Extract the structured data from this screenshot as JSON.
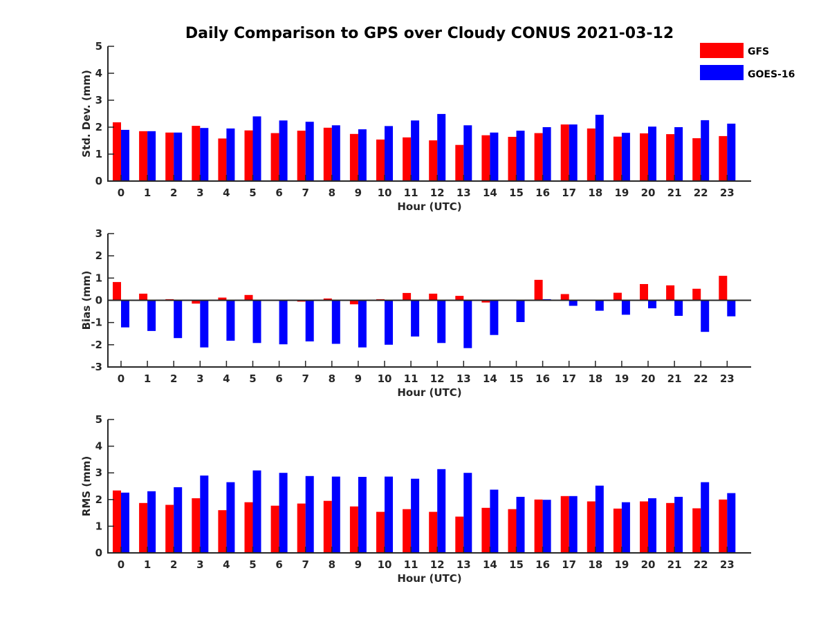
{
  "figure": {
    "title": "Daily Comparison to GPS over Cloudy CONUS 2021-03-12"
  },
  "legend": [
    {
      "label": "GFS",
      "color": "#ff0000"
    },
    {
      "label": "GOES-16",
      "color": "#0000ff"
    }
  ],
  "chart_data": [
    {
      "type": "bar",
      "title": "Daily Comparison to GPS over Cloudy CONUS 2021-03-12",
      "xlabel": "Hour (UTC)",
      "ylabel": "Std. Dev. (mm)",
      "ylim": [
        0,
        5
      ],
      "yticks": [
        0,
        1,
        2,
        3,
        4,
        5
      ],
      "grid": false,
      "legend_position": "top-right",
      "categories": [
        "0",
        "1",
        "2",
        "3",
        "4",
        "5",
        "6",
        "7",
        "8",
        "9",
        "10",
        "11",
        "12",
        "13",
        "14",
        "15",
        "16",
        "17",
        "18",
        "19",
        "20",
        "21",
        "22",
        "23"
      ],
      "series": [
        {
          "name": "GFS",
          "color": "#ff0000",
          "values": [
            2.18,
            1.85,
            1.8,
            2.05,
            1.58,
            1.88,
            1.78,
            1.87,
            1.98,
            1.75,
            1.54,
            1.62,
            1.51,
            1.34,
            1.7,
            1.64,
            1.78,
            2.1,
            1.95,
            1.65,
            1.77,
            1.74,
            1.59,
            1.67
          ]
        },
        {
          "name": "GOES-16",
          "color": "#0000ff",
          "values": [
            1.9,
            1.85,
            1.8,
            1.97,
            1.95,
            2.4,
            2.25,
            2.2,
            2.07,
            1.92,
            2.04,
            2.25,
            2.49,
            2.07,
            1.8,
            1.87,
            2.0,
            2.1,
            2.46,
            1.79,
            2.02,
            2.0,
            2.26,
            2.13
          ]
        }
      ]
    },
    {
      "type": "bar",
      "xlabel": "Hour (UTC)",
      "ylabel": "Bias (mm)",
      "ylim": [
        -3,
        3
      ],
      "yticks": [
        -3,
        -2,
        -1,
        0,
        1,
        2,
        3
      ],
      "grid": false,
      "categories": [
        "0",
        "1",
        "2",
        "3",
        "4",
        "5",
        "6",
        "7",
        "8",
        "9",
        "10",
        "11",
        "12",
        "13",
        "14",
        "15",
        "16",
        "17",
        "18",
        "19",
        "20",
        "21",
        "22",
        "23"
      ],
      "series": [
        {
          "name": "GFS",
          "color": "#ff0000",
          "values": [
            0.82,
            0.3,
            0.05,
            -0.15,
            0.12,
            0.24,
            0.02,
            -0.06,
            0.08,
            -0.18,
            0.05,
            0.33,
            0.3,
            0.2,
            -0.1,
            0.02,
            0.92,
            0.28,
            -0.02,
            0.34,
            0.73,
            0.67,
            0.52,
            1.1
          ]
        },
        {
          "name": "GOES-16",
          "color": "#0000ff",
          "values": [
            -1.22,
            -1.38,
            -1.7,
            -2.12,
            -1.82,
            -1.92,
            -1.98,
            -1.85,
            -1.96,
            -2.12,
            -2.0,
            -1.63,
            -1.92,
            -2.15,
            -1.56,
            -0.98,
            0.05,
            -0.25,
            -0.47,
            -0.65,
            -0.36,
            -0.7,
            -1.42,
            -0.72
          ]
        }
      ]
    },
    {
      "type": "bar",
      "xlabel": "Hour (UTC)",
      "ylabel": "RMS (mm)",
      "ylim": [
        0,
        5
      ],
      "yticks": [
        0,
        1,
        2,
        3,
        4,
        5
      ],
      "grid": false,
      "categories": [
        "0",
        "1",
        "2",
        "3",
        "4",
        "5",
        "6",
        "7",
        "8",
        "9",
        "10",
        "11",
        "12",
        "13",
        "14",
        "15",
        "16",
        "17",
        "18",
        "19",
        "20",
        "21",
        "22",
        "23"
      ],
      "series": [
        {
          "name": "GFS",
          "color": "#ff0000",
          "values": [
            2.34,
            1.87,
            1.8,
            2.05,
            1.6,
            1.9,
            1.77,
            1.85,
            1.95,
            1.74,
            1.54,
            1.64,
            1.54,
            1.36,
            1.69,
            1.64,
            2.0,
            2.13,
            1.93,
            1.66,
            1.93,
            1.87,
            1.67,
            2.0
          ]
        },
        {
          "name": "GOES-16",
          "color": "#0000ff",
          "values": [
            2.26,
            2.31,
            2.46,
            2.9,
            2.65,
            3.09,
            3.0,
            2.88,
            2.86,
            2.85,
            2.86,
            2.78,
            3.14,
            3.0,
            2.37,
            2.1,
            1.99,
            2.13,
            2.52,
            1.9,
            2.05,
            2.1,
            2.65,
            2.24
          ]
        }
      ]
    }
  ]
}
